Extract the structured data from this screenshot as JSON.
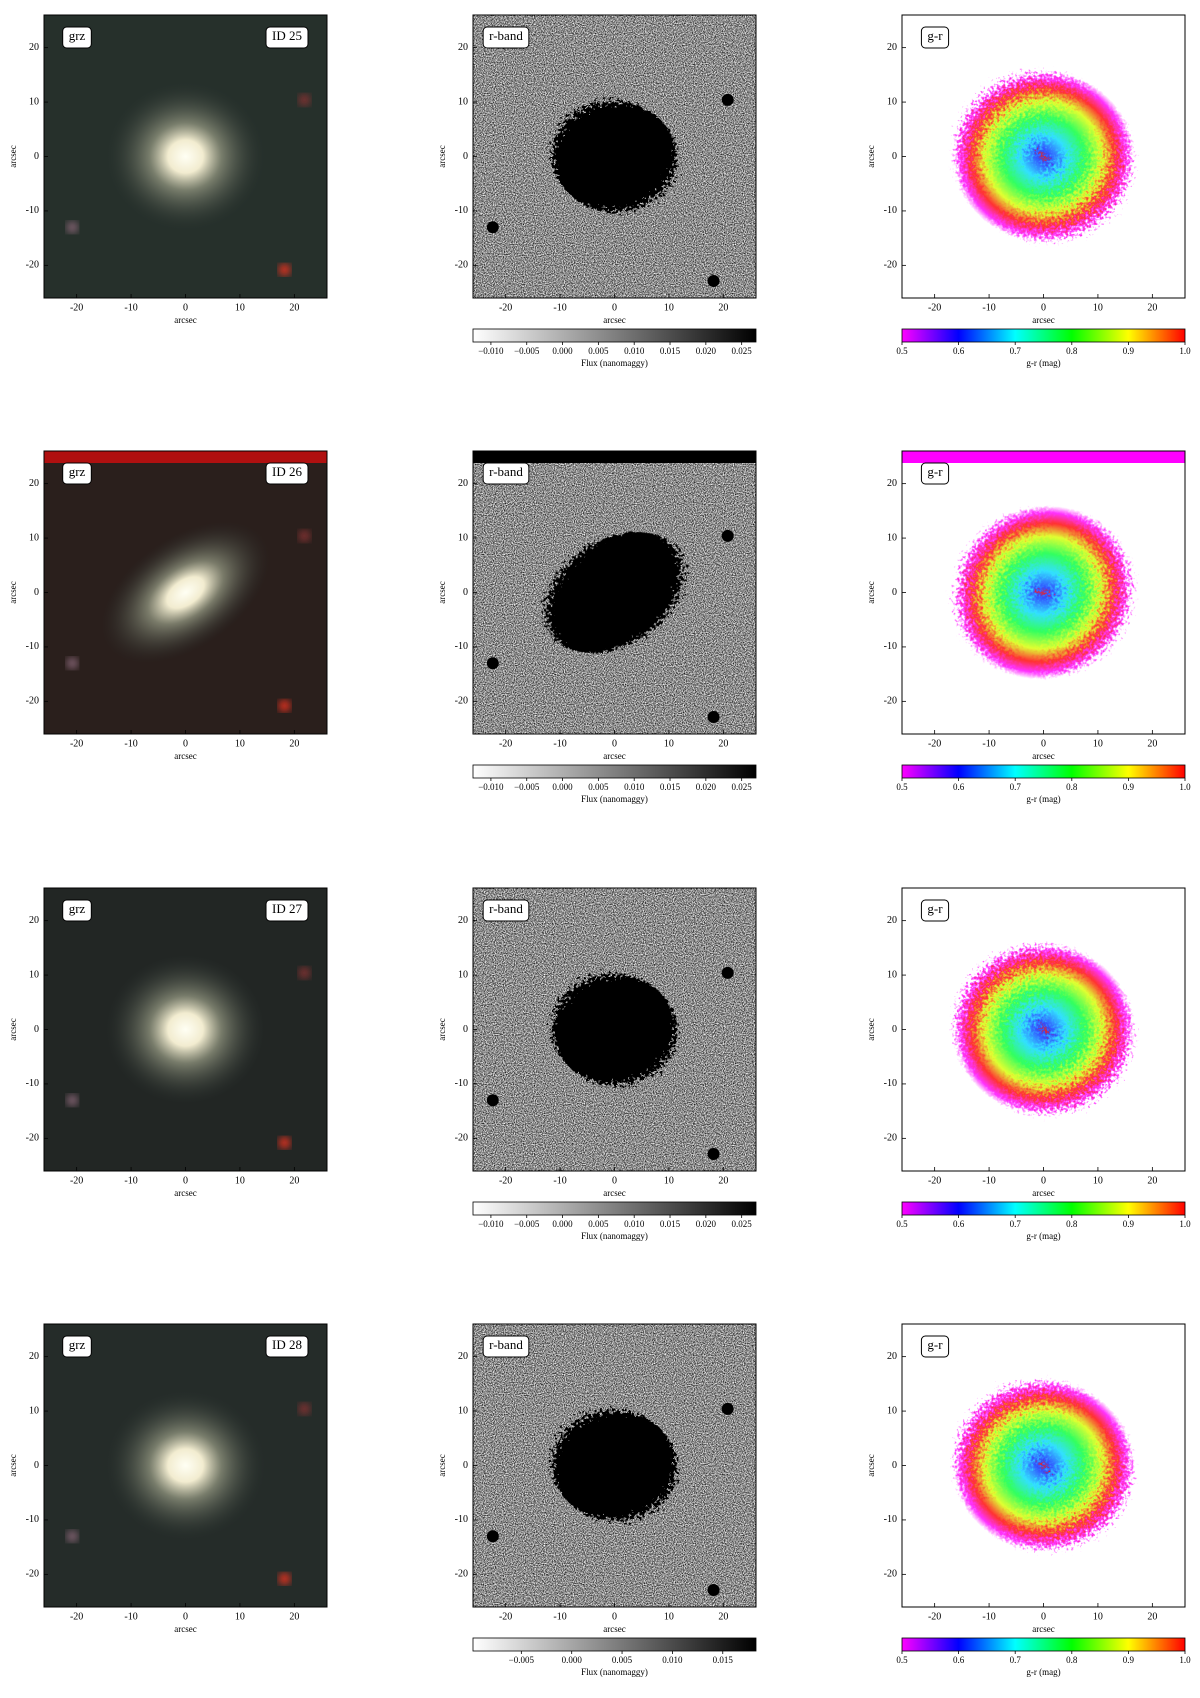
{
  "axis_label": "arcsec",
  "axis_lim": [
    -26,
    26
  ],
  "axis_ticks": [
    -20,
    -10,
    0,
    10,
    20
  ],
  "rows": [
    {
      "panels": [
        {
          "label": "grz",
          "id": "ID 25"
        },
        {
          "label": "r-band",
          "colorbar": {
            "label": "Flux (nanomaggy)",
            "lim": [
              -0.0125,
              0.027
            ],
            "ticks": [
              {
                "value": -0.01,
                "label": "−0.010"
              },
              {
                "value": -0.005,
                "label": "−0.005"
              },
              {
                "value": 0,
                "label": "0.000"
              },
              {
                "value": 0.005,
                "label": "0.005"
              },
              {
                "value": 0.01,
                "label": "0.010"
              },
              {
                "value": 0.015,
                "label": "0.015"
              },
              {
                "value": 0.02,
                "label": "0.020"
              },
              {
                "value": 0.025,
                "label": "0.025"
              }
            ]
          }
        },
        {
          "label": "g-r",
          "colorbar": {
            "label": "g-r (mag)",
            "lim": [
              0.5,
              1.0
            ],
            "ticks": [
              0.5,
              0.6,
              0.7,
              0.8,
              0.9,
              {
                "value": 1.0,
                "label": "1.0"
              }
            ]
          }
        }
      ]
    },
    {
      "panels": [
        {
          "label": "grz",
          "id": "ID 26"
        },
        {
          "label": "r-band",
          "colorbar": {
            "label": "Flux (nanomaggy)",
            "lim": [
              -0.0125,
              0.027
            ],
            "ticks": [
              {
                "value": -0.01,
                "label": "−0.010"
              },
              {
                "value": -0.005,
                "label": "−0.005"
              },
              {
                "value": 0,
                "label": "0.000"
              },
              {
                "value": 0.005,
                "label": "0.005"
              },
              {
                "value": 0.01,
                "label": "0.010"
              },
              {
                "value": 0.015,
                "label": "0.015"
              },
              {
                "value": 0.02,
                "label": "0.020"
              },
              {
                "value": 0.025,
                "label": "0.025"
              }
            ]
          }
        },
        {
          "label": "g-r",
          "colorbar": {
            "label": "g-r (mag)",
            "lim": [
              0.5,
              1.0
            ],
            "ticks": [
              0.5,
              0.6,
              0.7,
              0.8,
              0.9,
              {
                "value": 1.0,
                "label": "1.0"
              }
            ]
          }
        }
      ]
    },
    {
      "panels": [
        {
          "label": "grz",
          "id": "ID 27"
        },
        {
          "label": "r-band",
          "colorbar": {
            "label": "Flux (nanomaggy)",
            "lim": [
              -0.0125,
              0.027
            ],
            "ticks": [
              {
                "value": -0.01,
                "label": "−0.010"
              },
              {
                "value": -0.005,
                "label": "−0.005"
              },
              {
                "value": 0,
                "label": "0.000"
              },
              {
                "value": 0.005,
                "label": "0.005"
              },
              {
                "value": 0.01,
                "label": "0.010"
              },
              {
                "value": 0.015,
                "label": "0.015"
              },
              {
                "value": 0.02,
                "label": "0.020"
              },
              {
                "value": 0.025,
                "label": "0.025"
              }
            ]
          }
        },
        {
          "label": "g-r",
          "colorbar": {
            "label": "g-r (mag)",
            "lim": [
              0.5,
              1.0
            ],
            "ticks": [
              0.5,
              0.6,
              0.7,
              0.8,
              0.9,
              {
                "value": 1.0,
                "label": "1.0"
              }
            ]
          }
        }
      ]
    },
    {
      "panels": [
        {
          "label": "grz",
          "id": "ID 28"
        },
        {
          "label": "r-band",
          "colorbar": {
            "label": "Flux (nanomaggy)",
            "lim": [
              -0.0098,
              0.0183
            ],
            "ticks": [
              {
                "value": -0.005,
                "label": "−0.005"
              },
              {
                "value": 0,
                "label": "0.000"
              },
              {
                "value": 0.005,
                "label": "0.005"
              },
              {
                "value": 0.01,
                "label": "0.010"
              },
              {
                "value": 0.015,
                "label": "0.015"
              }
            ]
          }
        },
        {
          "label": "g-r",
          "colorbar": {
            "label": "g-r (mag)",
            "lim": [
              0.5,
              1.0
            ],
            "ticks": [
              0.5,
              0.6,
              0.7,
              0.8,
              0.9,
              {
                "value": 1.0,
                "label": "1.0"
              }
            ]
          }
        }
      ]
    }
  ]
}
